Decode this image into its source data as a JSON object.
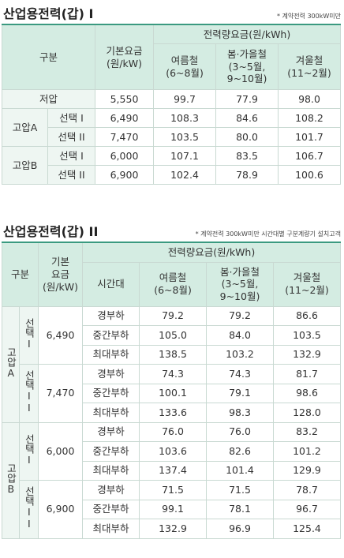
{
  "table1": {
    "title": "산업용전력(갑) I",
    "note": "* 계약전력 300kW미만",
    "header": {
      "category": "구분",
      "base": "기본요금\n(원/kW)",
      "energy": "전력량요금(원/kWh)",
      "seasons": [
        "여름철\n(6~8월)",
        "봄·가을철\n(3~5월,\n9~10월)",
        "겨울철\n(11~2월)"
      ]
    },
    "low": {
      "label": "저압",
      "base": "5,550",
      "rates": [
        "99.7",
        "77.9",
        "98.0"
      ]
    },
    "groups": [
      {
        "label": "고압A",
        "options": [
          {
            "label": "선택 I",
            "base": "6,490",
            "rates": [
              "108.3",
              "84.6",
              "108.2"
            ]
          },
          {
            "label": "선택 II",
            "base": "7,470",
            "rates": [
              "103.5",
              "80.0",
              "101.7"
            ]
          }
        ]
      },
      {
        "label": "고압B",
        "options": [
          {
            "label": "선택 I",
            "base": "6,000",
            "rates": [
              "107.1",
              "83.5",
              "106.7"
            ]
          },
          {
            "label": "선택 II",
            "base": "6,900",
            "rates": [
              "102.4",
              "78.9",
              "100.6"
            ]
          }
        ]
      }
    ]
  },
  "table2": {
    "title": "산업용전력(갑) II",
    "note": "* 계약전력 300kW미만 시간대별 구분계량기 설치고객",
    "header": {
      "category": "구분",
      "base": "기본\n요금\n(원/kW)",
      "period": "시간대",
      "energy": "전력량요금(원/kWh)",
      "seasons": [
        "여름철\n(6~8월)",
        "봄·가을철\n(3~5월,\n9~10월)",
        "겨울철\n(11~2월)"
      ]
    },
    "groups": [
      {
        "label": "고압A",
        "options": [
          {
            "label": "선택I",
            "base": "6,490",
            "rows": [
              {
                "period": "경부하",
                "rates": [
                  "79.2",
                  "79.2",
                  "86.6"
                ]
              },
              {
                "period": "중간부하",
                "rates": [
                  "105.0",
                  "84.0",
                  "103.5"
                ]
              },
              {
                "period": "최대부하",
                "rates": [
                  "138.5",
                  "103.2",
                  "132.9"
                ]
              }
            ]
          },
          {
            "label": "선택II",
            "base": "7,470",
            "rows": [
              {
                "period": "경부하",
                "rates": [
                  "74.3",
                  "74.3",
                  "81.7"
                ]
              },
              {
                "period": "중간부하",
                "rates": [
                  "100.1",
                  "79.1",
                  "98.6"
                ]
              },
              {
                "period": "최대부하",
                "rates": [
                  "133.6",
                  "98.3",
                  "128.0"
                ]
              }
            ]
          }
        ]
      },
      {
        "label": "고압B",
        "options": [
          {
            "label": "선택I",
            "base": "6,000",
            "rows": [
              {
                "period": "경부하",
                "rates": [
                  "76.0",
                  "76.0",
                  "83.2"
                ]
              },
              {
                "period": "중간부하",
                "rates": [
                  "103.6",
                  "82.6",
                  "101.2"
                ]
              },
              {
                "period": "최대부하",
                "rates": [
                  "137.4",
                  "101.4",
                  "129.9"
                ]
              }
            ]
          },
          {
            "label": "선택II",
            "base": "6,900",
            "rows": [
              {
                "period": "경부하",
                "rates": [
                  "71.5",
                  "71.5",
                  "78.7"
                ]
              },
              {
                "period": "중간부하",
                "rates": [
                  "99.1",
                  "78.1",
                  "96.7"
                ]
              },
              {
                "period": "최대부하",
                "rates": [
                  "132.9",
                  "96.9",
                  "125.4"
                ]
              }
            ]
          }
        ]
      }
    ]
  }
}
